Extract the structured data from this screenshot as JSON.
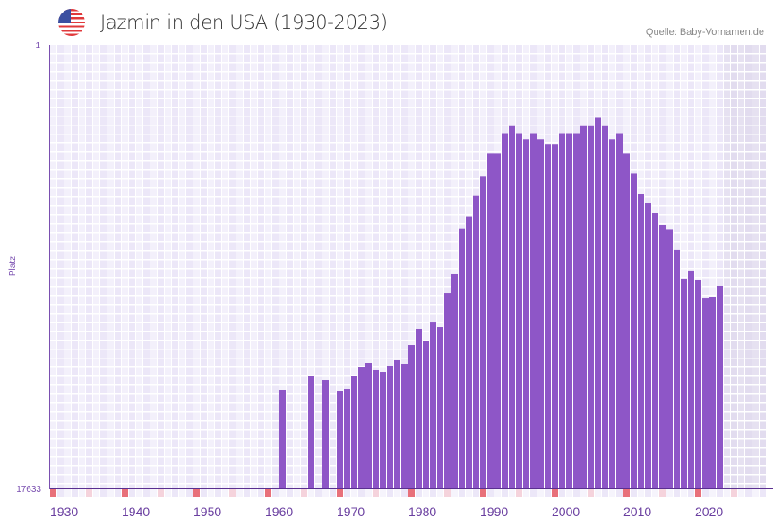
{
  "header": {
    "title": "Jazmin in den USA (1930-2023)",
    "source": "Quelle: Baby-Vornamen.de",
    "flag_icon": "usa-flag-icon"
  },
  "colors": {
    "bar": "#8e56c7",
    "decade_marker": "#e8707a",
    "half_decade_marker": "#f5d3dc",
    "axis": "#6a3fa0"
  },
  "chart_data": {
    "type": "bar",
    "title": "Jazmin in den USA (1930-2023)",
    "xlabel": "",
    "ylabel": "Platz",
    "y_scale": "log-reversed",
    "ylim": [
      1,
      17633
    ],
    "y_tick_labels": [
      "1",
      "17633"
    ],
    "xlim": [
      1930,
      2030
    ],
    "x_tick_labels": [
      "1930",
      "1940",
      "1950",
      "1960",
      "1970",
      "1980",
      "1990",
      "2000",
      "2010",
      "2020"
    ],
    "projection_start_year": 2024,
    "x": [
      1962,
      1966,
      1968,
      1970,
      1971,
      1972,
      1973,
      1974,
      1975,
      1976,
      1977,
      1978,
      1979,
      1980,
      1981,
      1982,
      1983,
      1984,
      1985,
      1986,
      1987,
      1988,
      1989,
      1990,
      1991,
      1992,
      1993,
      1994,
      1995,
      1996,
      1997,
      1998,
      1999,
      2000,
      2001,
      2002,
      2003,
      2004,
      2005,
      2006,
      2007,
      2008,
      2009,
      2010,
      2011,
      2012,
      2013,
      2014,
      2015,
      2016,
      2017,
      2018,
      2019,
      2020,
      2021,
      2022,
      2023
    ],
    "values": [
      2008,
      1493,
      1616,
      2048,
      1969,
      1493,
      1226,
      1110,
      1300,
      1353,
      1201,
      1046,
      1132,
      748,
      524,
      691,
      448,
      504,
      238,
      157,
      57,
      44,
      28,
      18,
      11,
      11,
      7,
      6,
      7,
      8,
      7,
      8,
      9,
      9,
      7,
      7,
      7,
      6,
      6,
      5,
      6,
      8,
      7,
      11,
      17,
      27,
      33,
      41,
      53,
      59,
      92,
      173,
      145,
      180,
      268,
      258,
      203
    ]
  }
}
